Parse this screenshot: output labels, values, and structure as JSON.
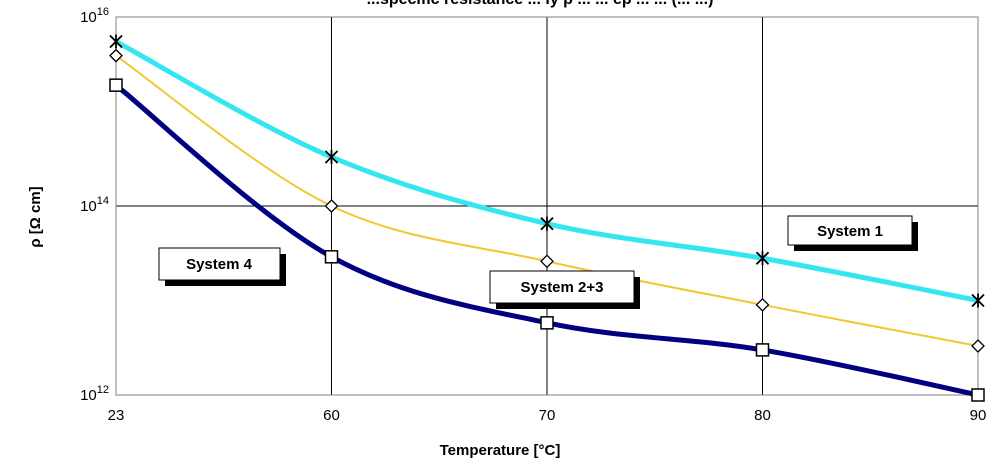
{
  "chart_data": {
    "type": "line",
    "title": "...specific resistance ... ly p ... ... ep ... ... (... ...)",
    "xlabel": "Temperature [°C]",
    "ylabel": "ρ [Ω cm]",
    "y_scale": "log",
    "ylim": [
      1000000000000.0,
      1e+16
    ],
    "y_ticks": [
      {
        "base": "10",
        "exp": "12",
        "value": 1000000000000.0
      },
      {
        "base": "10",
        "exp": "14",
        "value": 100000000000000.0
      },
      {
        "base": "10",
        "exp": "16",
        "value": 1e+16
      }
    ],
    "categories": [
      "23",
      "60",
      "70",
      "80",
      "90"
    ],
    "grid": true,
    "series": [
      {
        "name": "System 1",
        "marker": "star",
        "color": "#33e6f0",
        "values": [
          5500000000000000.0,
          330000000000000.0,
          65000000000000.0,
          28000000000000.0,
          10000000000000.0
        ]
      },
      {
        "name": "System 2+3",
        "marker": "diamond",
        "color": "#f0c830",
        "values": [
          3900000000000000.0,
          100000000000000.0,
          26000000000000.0,
          9000000000000.0,
          3300000000000.0
        ]
      },
      {
        "name": "System 4",
        "marker": "square",
        "color": "#000080",
        "values": [
          1900000000000000.0,
          29000000000000.0,
          5800000000000.0,
          3000000000000.0,
          1000000000000.0
        ]
      }
    ],
    "annotations": [
      "System 1",
      "System 2+3",
      "System 4"
    ]
  }
}
